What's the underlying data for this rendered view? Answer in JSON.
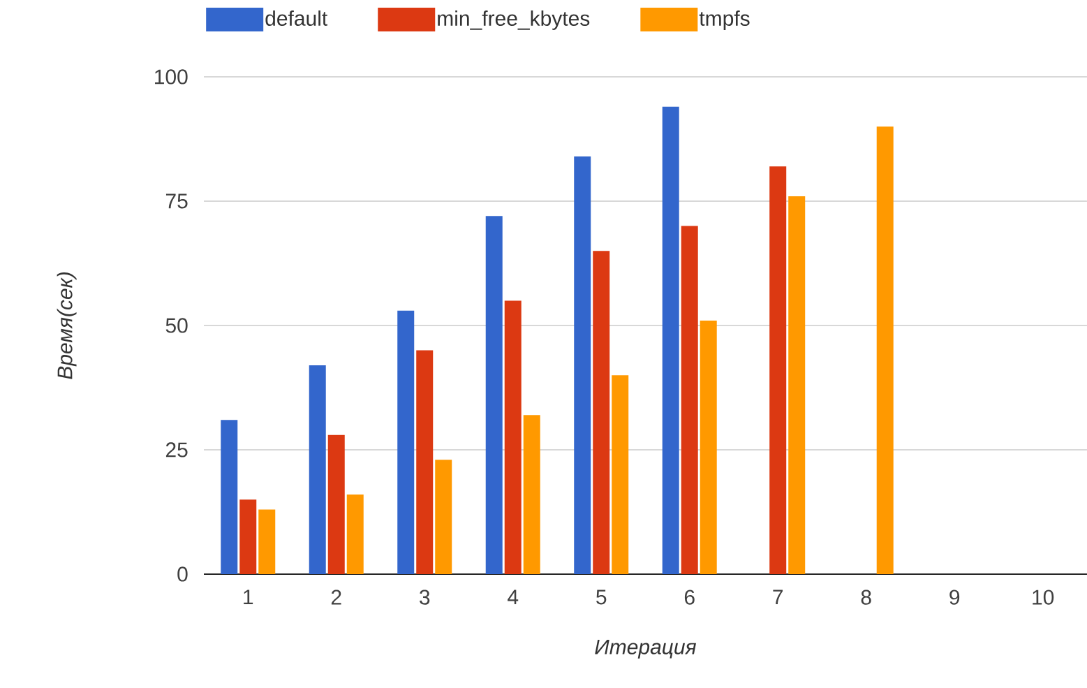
{
  "chart_data": {
    "type": "bar",
    "xlabel": "Итерация",
    "ylabel": "Время(сек)",
    "categories": [
      "1",
      "2",
      "3",
      "4",
      "5",
      "6",
      "7",
      "8",
      "9",
      "10"
    ],
    "series": [
      {
        "name": "default",
        "color": "#3366cc",
        "values": [
          31,
          42,
          53,
          72,
          84,
          94,
          null,
          null,
          null,
          null
        ]
      },
      {
        "name": "min_free_kbytes",
        "color": "#dc3912",
        "values": [
          15,
          28,
          45,
          55,
          65,
          70,
          82,
          null,
          null,
          null
        ]
      },
      {
        "name": "tmpfs",
        "color": "#ff9900",
        "values": [
          13,
          16,
          23,
          32,
          40,
          51,
          76,
          90,
          null,
          null
        ]
      }
    ],
    "ylim": [
      0,
      100
    ],
    "yticks": [
      0,
      25,
      50,
      75,
      100
    ],
    "grid": "y",
    "legend": "top"
  }
}
